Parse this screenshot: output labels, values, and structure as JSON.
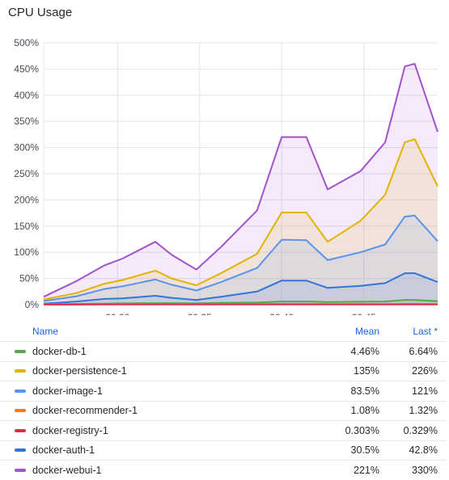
{
  "panel": {
    "title": "CPU Usage"
  },
  "legend": {
    "headers": {
      "name": "Name",
      "mean": "Mean",
      "last": "Last *"
    },
    "rows": [
      {
        "name": "docker-db-1",
        "color": "#56a64b",
        "mean": "4.46%",
        "last": "6.64%"
      },
      {
        "name": "docker-persistence-1",
        "color": "#e0b400",
        "mean": "135%",
        "last": "226%"
      },
      {
        "name": "docker-image-1",
        "color": "#5794f2",
        "mean": "83.5%",
        "last": "121%"
      },
      {
        "name": "docker-recommender-1",
        "color": "#ff780a",
        "mean": "1.08%",
        "last": "1.32%"
      },
      {
        "name": "docker-registry-1",
        "color": "#e02f44",
        "mean": "0.303%",
        "last": "0.329%"
      },
      {
        "name": "docker-auth-1",
        "color": "#3274d9",
        "mean": "30.5%",
        "last": "42.8%"
      },
      {
        "name": "docker-webui-1",
        "color": "#a352cc",
        "mean": "221%",
        "last": "330%"
      }
    ]
  },
  "chart_data": {
    "type": "area",
    "y_ticks": [
      "0%",
      "50%",
      "100%",
      "150%",
      "200%",
      "250%",
      "300%",
      "350%",
      "400%",
      "450%",
      "500%"
    ],
    "x_ticks": [
      "20:30",
      "20:35",
      "20:40",
      "20:45"
    ],
    "x_tick_values": [
      30,
      35,
      40,
      45
    ],
    "xlim": [
      25.5,
      49.5
    ],
    "ylim": [
      0,
      500
    ],
    "grid": true,
    "x": [
      25.5,
      27.5,
      29.2,
      30.3,
      32.3,
      33.3,
      34.8,
      36.3,
      38.5,
      40.0,
      41.5,
      42.8,
      44.8,
      46.3,
      47.5,
      48.1,
      49.5
    ],
    "series": [
      {
        "name": "docker-webui-1",
        "color": "#a352cc",
        "values": [
          15,
          45,
          75,
          88,
          120,
          95,
          67,
          110,
          180,
          320,
          320,
          220,
          255,
          310,
          455,
          460,
          330
        ]
      },
      {
        "name": "docker-persistence-1",
        "color": "#e0b400",
        "values": [
          10,
          22,
          40,
          47,
          65,
          50,
          37,
          60,
          97,
          176,
          176,
          120,
          160,
          210,
          310,
          316,
          226
        ]
      },
      {
        "name": "docker-image-1",
        "color": "#5794f2",
        "values": [
          7,
          16,
          30,
          35,
          48,
          38,
          27,
          43,
          70,
          124,
          123,
          85,
          100,
          115,
          168,
          170,
          121
        ]
      },
      {
        "name": "docker-auth-1",
        "color": "#3274d9",
        "values": [
          2,
          6,
          11,
          12,
          17,
          13,
          9,
          15,
          25,
          46,
          46,
          32,
          36,
          41,
          60,
          60,
          43
        ]
      },
      {
        "name": "docker-db-1",
        "color": "#56a64b",
        "values": [
          1,
          1.5,
          2,
          2.5,
          3,
          3,
          2.5,
          3.5,
          4,
          6,
          6,
          5,
          5.5,
          6,
          9,
          9,
          6.6
        ]
      },
      {
        "name": "docker-recommender-1",
        "color": "#ff780a",
        "values": [
          0.5,
          0.6,
          0.8,
          0.9,
          1,
          0.9,
          0.8,
          1,
          1.1,
          1.4,
          1.4,
          1.2,
          1.2,
          1.3,
          1.5,
          1.5,
          1.3
        ]
      },
      {
        "name": "docker-registry-1",
        "color": "#e02f44",
        "values": [
          0.2,
          0.2,
          0.25,
          0.25,
          0.3,
          0.3,
          0.25,
          0.3,
          0.3,
          0.35,
          0.35,
          0.3,
          0.3,
          0.3,
          0.35,
          0.35,
          0.33
        ]
      }
    ]
  }
}
